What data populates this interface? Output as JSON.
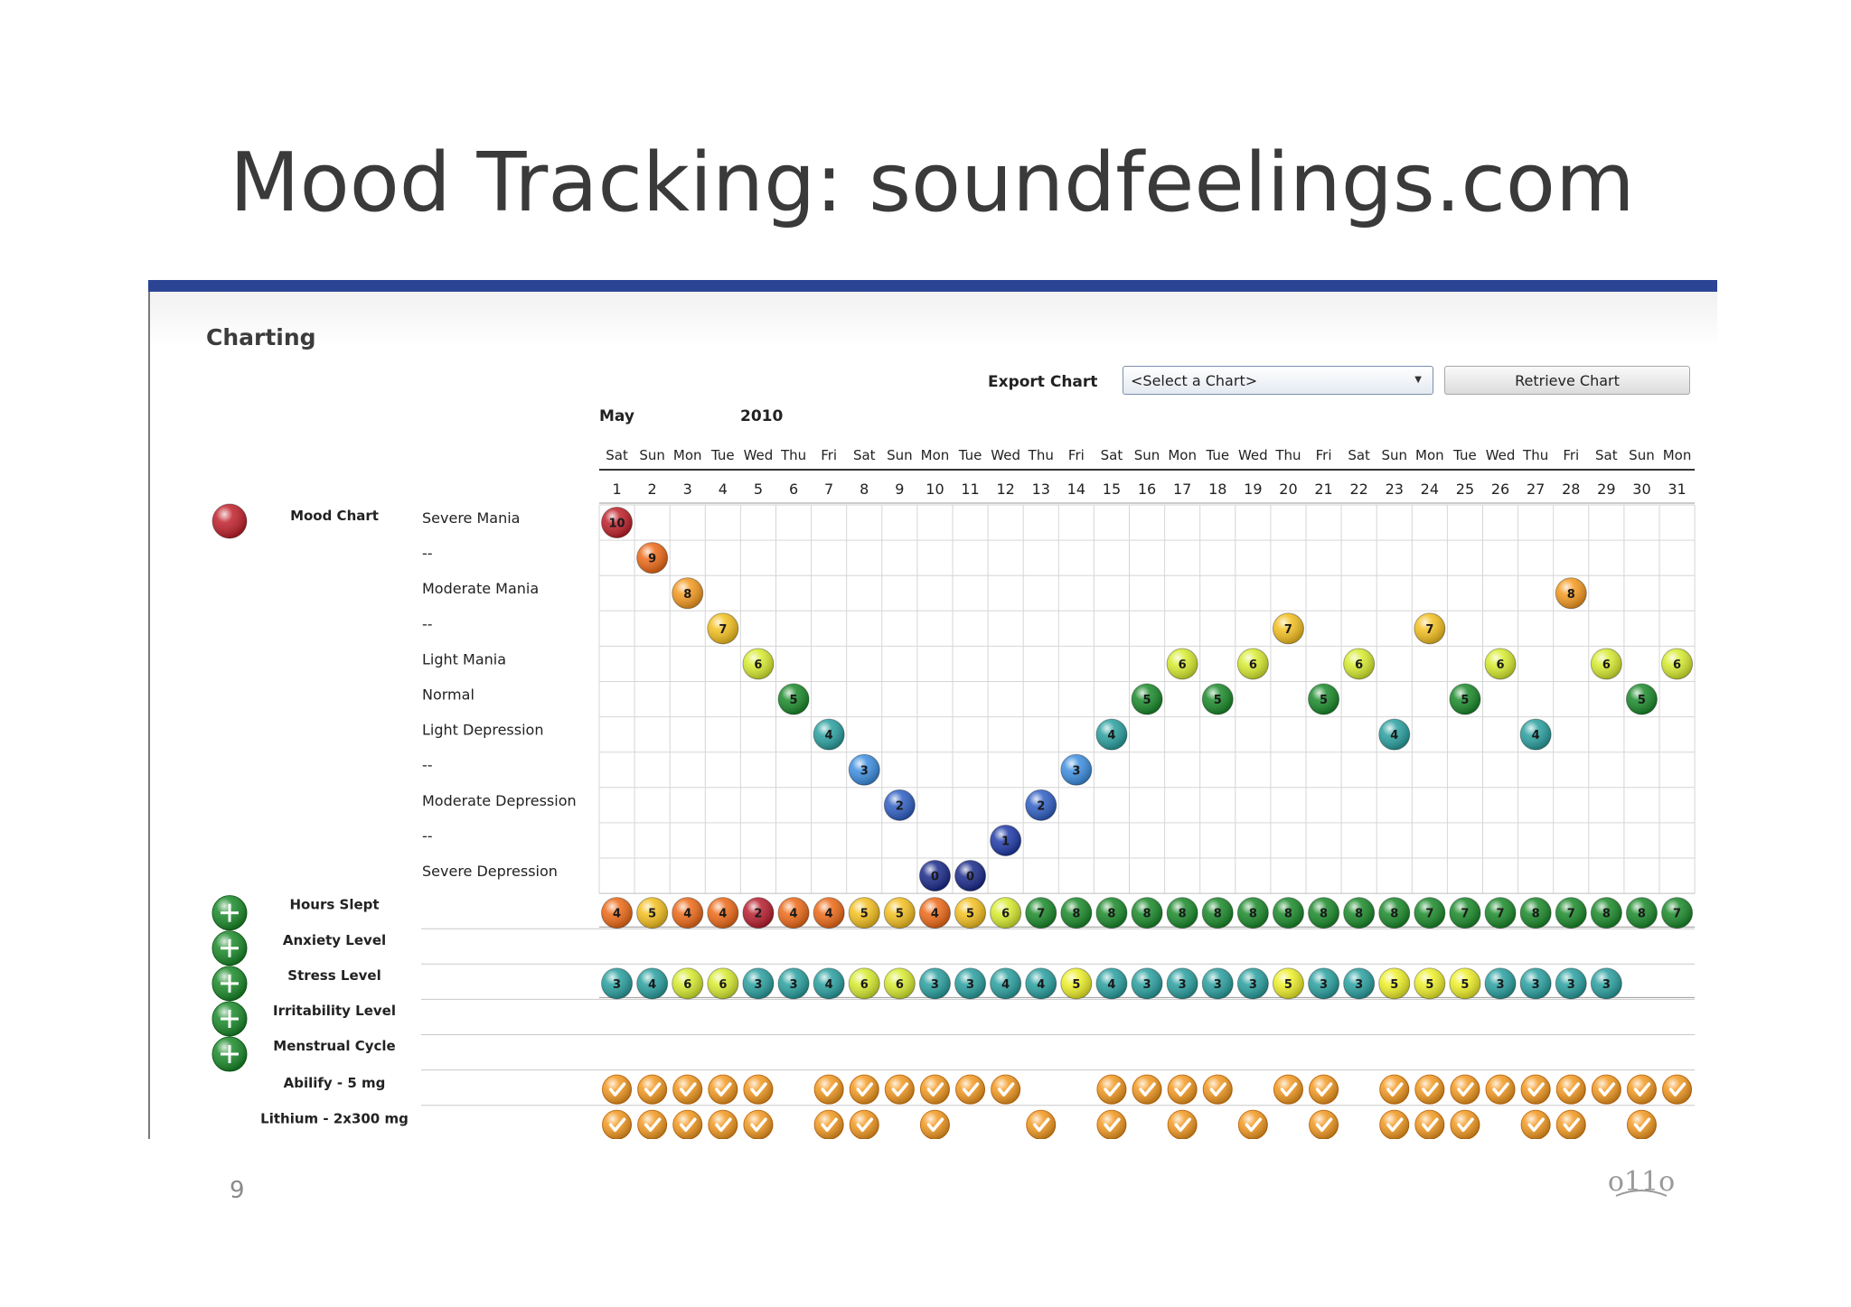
{
  "slide": {
    "title": "Mood Tracking: soundfeelings.com",
    "page_number": "9",
    "accent_color": "#2b4494"
  },
  "panel": {
    "title": "Charting",
    "export_label": "Export Chart",
    "select_value": "<Select a Chart>",
    "retrieve_label": "Retrieve Chart",
    "month": "May",
    "year": "2010"
  },
  "calendar": {
    "day_names": [
      "Sat",
      "Sun",
      "Mon",
      "Tue",
      "Wed",
      "Thu",
      "Fri",
      "Sat",
      "Sun",
      "Mon",
      "Tue",
      "Wed",
      "Thu",
      "Fri",
      "Sat",
      "Sun",
      "Mon",
      "Tue",
      "Wed",
      "Thu",
      "Fri",
      "Sat",
      "Sun",
      "Mon",
      "Tue",
      "Wed",
      "Thu",
      "Fri",
      "Sat",
      "Sun",
      "Mon"
    ],
    "day_numbers": [
      1,
      2,
      3,
      4,
      5,
      6,
      7,
      8,
      9,
      10,
      11,
      12,
      13,
      14,
      15,
      16,
      17,
      18,
      19,
      20,
      21,
      22,
      23,
      24,
      25,
      26,
      27,
      28,
      29,
      30,
      31
    ]
  },
  "mood_chart": {
    "label": "Mood Chart",
    "levels": [
      "Severe Mania",
      "--",
      "Moderate Mania",
      "--",
      "Light Mania",
      "Normal",
      "Light Depression",
      "--",
      "Moderate Depression",
      "--",
      "Severe Depression"
    ],
    "values": [
      10,
      9,
      8,
      7,
      6,
      5,
      4,
      3,
      2,
      0,
      0,
      1,
      2,
      3,
      4,
      5,
      6,
      5,
      6,
      7,
      5,
      6,
      4,
      7,
      5,
      6,
      4,
      8,
      6,
      5,
      6
    ]
  },
  "trackers": [
    {
      "label": "Hours Slept",
      "icon": "plus-icon"
    },
    {
      "label": "Anxiety Level",
      "icon": "plus-icon"
    },
    {
      "label": "Stress Level",
      "icon": "plus-icon"
    },
    {
      "label": "Irritability Level",
      "icon": "plus-icon"
    },
    {
      "label": "Menstrual Cycle",
      "icon": "plus-icon"
    }
  ],
  "hours_slept": [
    4,
    5,
    4,
    4,
    2,
    4,
    4,
    5,
    5,
    4,
    5,
    6,
    7,
    8,
    8,
    8,
    8,
    8,
    8,
    8,
    8,
    8,
    8,
    7,
    7,
    7,
    8,
    7,
    8,
    8,
    7
  ],
  "stress_level": [
    3,
    4,
    6,
    6,
    3,
    3,
    4,
    6,
    6,
    3,
    3,
    4,
    4,
    5,
    4,
    3,
    3,
    3,
    3,
    5,
    3,
    3,
    5,
    5,
    5,
    3,
    3,
    3,
    3,
    null,
    null
  ],
  "medications": [
    {
      "label": "Abilify - 5 mg",
      "taken_days": [
        1,
        2,
        3,
        4,
        5,
        7,
        8,
        9,
        10,
        11,
        12,
        15,
        16,
        17,
        18,
        20,
        21,
        23,
        24,
        25,
        26,
        27,
        28,
        29,
        30,
        31
      ]
    },
    {
      "label": "Lithium - 2x300 mg",
      "taken_days": [
        1,
        2,
        3,
        4,
        5,
        7,
        8,
        10,
        13,
        15,
        17,
        19,
        21,
        23,
        24,
        25,
        27,
        28,
        30
      ]
    }
  ],
  "logo_text": "o11o",
  "colors": {
    "level_0": "#1a2a8a",
    "level_1": "#1f3aa8",
    "level_2": "#2f5fc4",
    "level_3": "#3d8ee0",
    "level_4": "#2aa0a0",
    "level_5": "#1a8a2a",
    "level_6": "#d8ec30",
    "level_7": "#f4c020",
    "level_8": "#f59a20",
    "level_9": "#ee6a18",
    "level_10": "#c0202a",
    "sleep_2": "#b81e2e",
    "sleep_4": "#ee6a18",
    "sleep_5": "#f4c020",
    "sleep_6": "#d8ec30",
    "sleep_7": "#1a8a2a",
    "sleep_8": "#1a8a2a",
    "check": "#f39a22"
  }
}
